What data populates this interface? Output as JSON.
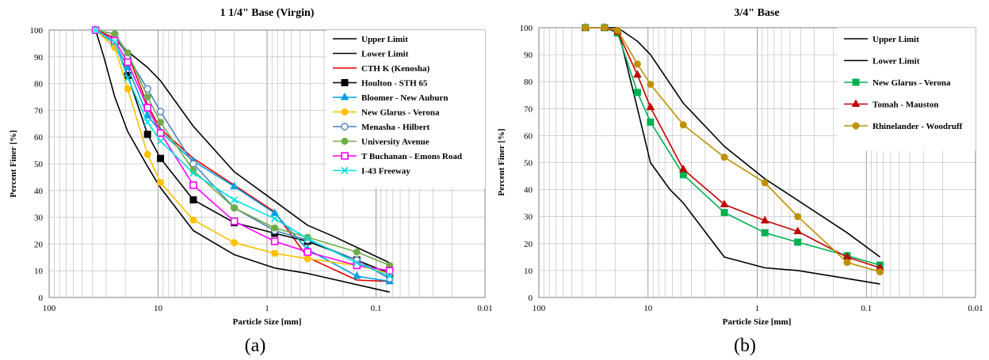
{
  "chart_data": [
    {
      "type": "line",
      "title": "1 1/4\" Base (Virgin)",
      "xlabel": "Particle Size [mm]",
      "ylabel": "Percent Finer [%]",
      "x_scale": "log-reversed",
      "xlim": [
        100,
        0.01
      ],
      "ylim": [
        0,
        100
      ],
      "x_tick_labels": [
        "100",
        "10",
        "1",
        "0.1",
        "0.01"
      ],
      "x_tick_values": [
        100,
        10,
        1,
        0.1,
        0.01
      ],
      "y_tick_values": [
        0,
        10,
        20,
        30,
        40,
        50,
        60,
        70,
        80,
        90,
        100
      ],
      "grid": true,
      "legend_position": "top-right",
      "caption": "(a)",
      "series": [
        {
          "name": "Upper Limit",
          "color": "#000000",
          "marker": "none",
          "x": [
            37.5,
            25,
            19,
            12.5,
            9.5,
            4.75,
            2,
            0.85,
            0.425,
            0.25,
            0.075
          ],
          "y": [
            100,
            97,
            92,
            86,
            81,
            64,
            47,
            36,
            27,
            23,
            13
          ]
        },
        {
          "name": "Lower Limit",
          "color": "#000000",
          "marker": "none",
          "x": [
            37.5,
            31.5,
            25,
            19,
            12.5,
            9.5,
            4.75,
            2,
            0.85,
            0.425,
            0.075
          ],
          "y": [
            100,
            90,
            75,
            62,
            49,
            41,
            25,
            16,
            11,
            9,
            2
          ]
        },
        {
          "name": "CTH K (Kenosha)",
          "color": "#e00000",
          "marker": "none",
          "x": [
            37.5,
            25,
            19,
            12.5,
            9.5,
            4.75,
            2,
            0.85,
            0.425,
            0.15,
            0.075
          ],
          "y": [
            100,
            97,
            91,
            72,
            63,
            52,
            42,
            32,
            15,
            6.5,
            6
          ]
        },
        {
          "name": "Houlton - STH 65",
          "color": "#000000",
          "marker": "square-filled",
          "x": [
            37.5,
            25,
            19,
            12.5,
            9.5,
            4.75,
            2,
            0.85,
            0.425,
            0.15,
            0.075
          ],
          "y": [
            100,
            95,
            83,
            61,
            52,
            36.5,
            28,
            24,
            21,
            14,
            9
          ]
        },
        {
          "name": "Bloomer - New Auburn",
          "color": "#00a0e0",
          "marker": "triangle-filled",
          "x": [
            37.5,
            25,
            19,
            12.5,
            9.5,
            4.75,
            2,
            0.85,
            0.425,
            0.15,
            0.075
          ],
          "y": [
            100,
            95,
            86,
            68,
            62,
            51,
            41.5,
            31.5,
            18,
            8,
            6
          ]
        },
        {
          "name": "New Glarus - Verona",
          "color": "#ffc000",
          "marker": "circle-filled",
          "x": [
            37.5,
            25,
            19,
            12.5,
            9.5,
            4.75,
            2,
            0.85,
            0.425,
            0.15,
            0.075
          ],
          "y": [
            100,
            93.5,
            78,
            53.5,
            43,
            29,
            20.5,
            16.5,
            14.5,
            12,
            9
          ]
        },
        {
          "name": "Menasha - Hilbert",
          "color": "#4f81bd",
          "marker": "circle-open",
          "x": [
            37.5,
            25,
            19,
            12.5,
            9.5,
            4.75,
            2,
            0.85,
            0.425,
            0.15,
            0.075
          ],
          "y": [
            100,
            98.5,
            90,
            78,
            69.5,
            50,
            33.5,
            25,
            21.5,
            14,
            7
          ]
        },
        {
          "name": "University Avenue",
          "color": "#70ad47",
          "marker": "circle-filled",
          "x": [
            37.5,
            25,
            19,
            12.5,
            9.5,
            4.75,
            2,
            0.85,
            0.425,
            0.15,
            0.075
          ],
          "y": [
            100,
            98.5,
            91.5,
            75,
            65.5,
            47.5,
            33.5,
            26,
            22.5,
            17,
            12
          ]
        },
        {
          "name": "T Buchanan - Emons Road",
          "color": "#ff00ff",
          "marker": "square-open",
          "x": [
            37.5,
            25,
            19,
            12.5,
            9.5,
            4.75,
            2,
            0.85,
            0.425,
            0.15,
            0.075
          ],
          "y": [
            100,
            96,
            88,
            71,
            61.5,
            42,
            28.5,
            21,
            17,
            12,
            10
          ]
        },
        {
          "name": "I-43 Freeway",
          "color": "#00e0e0",
          "marker": "x",
          "x": [
            37.5,
            25,
            19,
            12.5,
            9.5,
            4.75,
            2,
            0.85,
            0.425,
            0.15,
            0.075
          ],
          "y": [
            100,
            95.5,
            82,
            65.5,
            58.5,
            46.5,
            36.5,
            29.5,
            22,
            13,
            8
          ]
        }
      ]
    },
    {
      "type": "line",
      "title": "3/4\" Base",
      "xlabel": "Particle Size [mm]",
      "ylabel": "Percent Finer [%]",
      "x_scale": "log-reversed",
      "xlim": [
        100,
        0.01
      ],
      "ylim": [
        0,
        100
      ],
      "x_tick_labels": [
        "100",
        "10",
        "1",
        "0.1",
        "0.01"
      ],
      "x_tick_values": [
        100,
        10,
        1,
        0.1,
        0.01
      ],
      "y_tick_values": [
        0,
        10,
        20,
        30,
        40,
        50,
        60,
        70,
        80,
        90,
        100
      ],
      "grid": true,
      "legend_position": "top-right",
      "caption": "(b)",
      "series": [
        {
          "name": "Upper Limit",
          "color": "#000000",
          "marker": "none",
          "x": [
            25,
            19,
            12.5,
            9.5,
            4.75,
            2,
            0.85,
            0.425,
            0.15,
            0.075
          ],
          "y": [
            100,
            100,
            95,
            90,
            72,
            56,
            44,
            36,
            24,
            15
          ]
        },
        {
          "name": "Lower Limit",
          "color": "#000000",
          "marker": "none",
          "x": [
            19,
            12.5,
            9.5,
            6.3,
            4.75,
            2,
            0.85,
            0.425,
            0.15,
            0.075
          ],
          "y": [
            100,
            70,
            50,
            40,
            35,
            15,
            11,
            10,
            7,
            5
          ]
        },
        {
          "name": "New Glarus - Verona",
          "color": "#00b050",
          "marker": "square-filled",
          "x": [
            37.5,
            25,
            19,
            12.5,
            9.5,
            4.75,
            2,
            0.85,
            0.425,
            0.15,
            0.075
          ],
          "y": [
            100,
            100,
            98,
            76,
            65,
            45.5,
            31.5,
            24,
            20.5,
            15.5,
            12
          ]
        },
        {
          "name": "Tomah - Mauston",
          "color": "#c00000",
          "marker": "triangle-filled",
          "x": [
            37.5,
            25,
            19,
            12.5,
            9.5,
            4.75,
            2,
            0.85,
            0.425,
            0.15,
            0.075
          ],
          "y": [
            100,
            100,
            98.5,
            82.5,
            70.5,
            47.5,
            34.5,
            28.5,
            24.5,
            15,
            11
          ]
        },
        {
          "name": "Rhinelander - Woodruff",
          "color": "#bf9000",
          "marker": "circle-filled",
          "x": [
            37.5,
            25,
            19,
            12.5,
            9.5,
            4.75,
            2,
            0.85,
            0.425,
            0.15,
            0.075
          ],
          "y": [
            100,
            100,
            99,
            86.5,
            79,
            64,
            52,
            42.5,
            30,
            13,
            9.5
          ]
        }
      ]
    }
  ]
}
